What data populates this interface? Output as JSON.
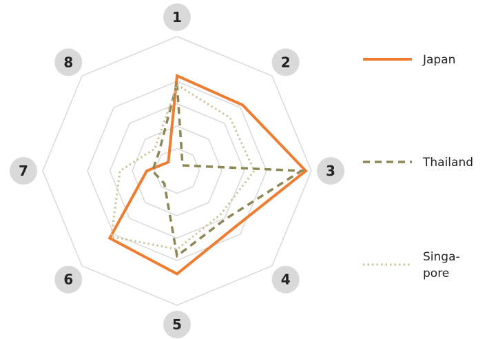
{
  "chart_data": {
    "type": "radar",
    "title": "",
    "axes": [
      "1",
      "2",
      "3",
      "4",
      "5",
      "6",
      "7",
      "8"
    ],
    "rmax": 6,
    "rings": 4,
    "grid": true,
    "legend_position": "right",
    "series": [
      {
        "name": "Japan",
        "values": [
          4.25,
          4.15,
          5.75,
          3.6,
          4.6,
          4.25,
          1.35,
          0.55
        ],
        "color": "#ef7d31",
        "style": "solid"
      },
      {
        "name": "Thailand",
        "values": [
          3.9,
          0.35,
          5.55,
          3.05,
          3.8,
          0.8,
          1.1,
          1.15
        ],
        "color": "#8c8754",
        "style": "dashed"
      },
      {
        "name": "Singa-\npore",
        "values": [
          3.85,
          3.35,
          3.45,
          2.75,
          3.5,
          4.15,
          2.55,
          1.4
        ],
        "color": "#cbc598",
        "style": "dotted"
      }
    ]
  }
}
